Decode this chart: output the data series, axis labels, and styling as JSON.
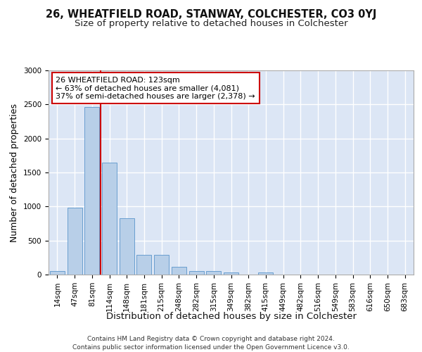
{
  "title": "26, WHEATFIELD ROAD, STANWAY, COLCHESTER, CO3 0YJ",
  "subtitle": "Size of property relative to detached houses in Colchester",
  "xlabel": "Distribution of detached houses by size in Colchester",
  "ylabel": "Number of detached properties",
  "categories": [
    "14sqm",
    "47sqm",
    "81sqm",
    "114sqm",
    "148sqm",
    "181sqm",
    "215sqm",
    "248sqm",
    "282sqm",
    "315sqm",
    "349sqm",
    "382sqm",
    "415sqm",
    "449sqm",
    "482sqm",
    "516sqm",
    "549sqm",
    "583sqm",
    "616sqm",
    "650sqm",
    "683sqm"
  ],
  "values": [
    50,
    985,
    2460,
    1650,
    825,
    290,
    290,
    110,
    50,
    50,
    35,
    0,
    35,
    0,
    0,
    0,
    0,
    0,
    0,
    0,
    0
  ],
  "bar_color": "#b8cfe8",
  "bar_edge_color": "#6a9fd0",
  "bg_color": "#dce6f5",
  "grid_color": "#ffffff",
  "annotation_text": "26 WHEATFIELD ROAD: 123sqm\n← 63% of detached houses are smaller (4,081)\n37% of semi-detached houses are larger (2,378) →",
  "vline_color": "#cc0000",
  "annotation_box_color": "#ffffff",
  "annotation_box_edge_color": "#cc0000",
  "footer_line1": "Contains HM Land Registry data © Crown copyright and database right 2024.",
  "footer_line2": "Contains public sector information licensed under the Open Government Licence v3.0.",
  "ylim": [
    0,
    3000
  ],
  "title_fontsize": 10.5,
  "subtitle_fontsize": 9.5,
  "axis_label_fontsize": 9,
  "tick_fontsize": 7.5,
  "annotation_fontsize": 8,
  "footer_fontsize": 6.5
}
